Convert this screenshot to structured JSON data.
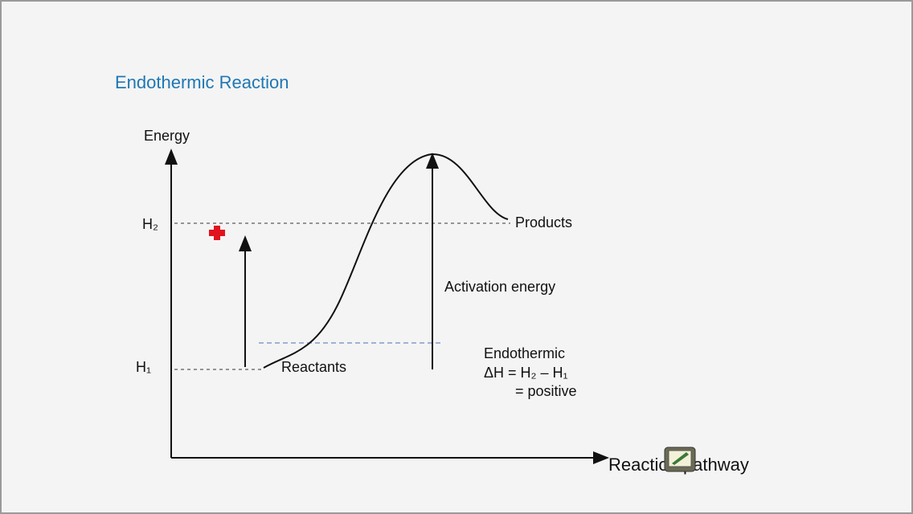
{
  "slide": {
    "title": "Endothermic Reaction"
  },
  "diagram": {
    "y_axis_label": "Energy",
    "x_axis_label": "Reaction pathway",
    "levels": {
      "high": "H₂",
      "low": "H₁"
    },
    "labels": {
      "products": "Products",
      "reactants": "Reactants",
      "activation": "Activation energy",
      "endothermic": "Endothermic",
      "delta_h": "ΔH = H₂ – H₁",
      "result": "= positive"
    }
  }
}
